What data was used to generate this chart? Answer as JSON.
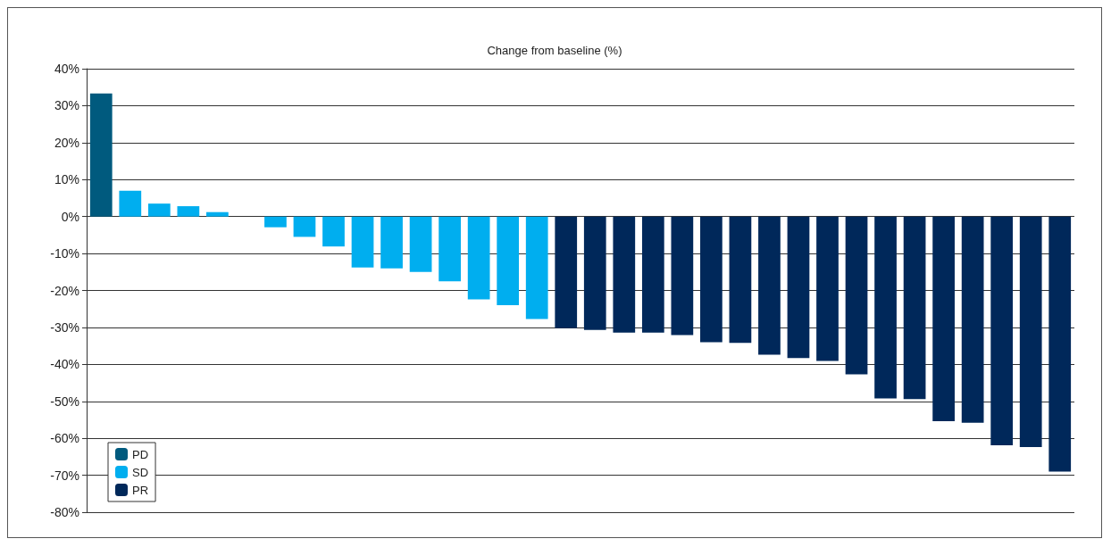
{
  "chart_data": {
    "type": "bar",
    "title": "Change from baseline (%)",
    "categories": [
      null,
      null,
      null,
      null,
      null,
      null,
      null,
      null,
      null,
      null,
      null,
      null,
      null,
      null,
      null,
      null,
      null,
      null,
      null,
      null,
      null,
      null,
      null,
      null,
      null,
      null,
      null,
      null,
      null,
      null,
      null,
      null,
      null,
      null
    ],
    "series": [
      {
        "name": "PD",
        "color": "#005a7e",
        "values": [
          33.3,
          null,
          null,
          null,
          null,
          null,
          null,
          null,
          null,
          null,
          null,
          null,
          null,
          null,
          null,
          null,
          null,
          null,
          null,
          null,
          null,
          null,
          null,
          null,
          null,
          null,
          null,
          null,
          null,
          null,
          null,
          null,
          null,
          null
        ]
      },
      {
        "name": "SD",
        "color": "#00aeef",
        "values": [
          null,
          7.0,
          3.5,
          2.8,
          1.2,
          0,
          -2.9,
          -5.5,
          -8.1,
          -13.8,
          -14.0,
          -15.0,
          -17.5,
          -22.4,
          -24.0,
          -27.7,
          null,
          null,
          null,
          null,
          null,
          null,
          null,
          null,
          null,
          null,
          null,
          null,
          null,
          null,
          null,
          null,
          null,
          null
        ]
      },
      {
        "name": "PR",
        "color": "#00285a",
        "values": [
          null,
          null,
          null,
          null,
          null,
          null,
          null,
          null,
          null,
          null,
          null,
          null,
          null,
          null,
          null,
          null,
          -30.2,
          -30.7,
          -31.4,
          -31.4,
          -32.1,
          -34.0,
          -34.2,
          -37.4,
          -38.3,
          -39.1,
          -42.7,
          -49.2,
          -49.4,
          -55.4,
          -55.8,
          -61.9,
          -62.4,
          -69.0
        ]
      }
    ],
    "ylim": [
      -80,
      40
    ],
    "yticks": [
      {
        "value": -80,
        "label": "-80%"
      },
      {
        "value": -70,
        "label": "-70%"
      },
      {
        "value": -60,
        "label": "-60%"
      },
      {
        "value": -50,
        "label": "-50%"
      },
      {
        "value": -40,
        "label": "-40%"
      },
      {
        "value": -30,
        "label": "-30%"
      },
      {
        "value": -20,
        "label": "-20%"
      },
      {
        "value": -10,
        "label": "-10%"
      },
      {
        "value": 0,
        "label": "0%"
      },
      {
        "value": 10,
        "label": "10%"
      },
      {
        "value": 20,
        "label": "20%"
      },
      {
        "value": 30,
        "label": "30%"
      },
      {
        "value": 40,
        "label": "40%"
      }
    ],
    "grid": "y",
    "legend": "bottom left"
  }
}
